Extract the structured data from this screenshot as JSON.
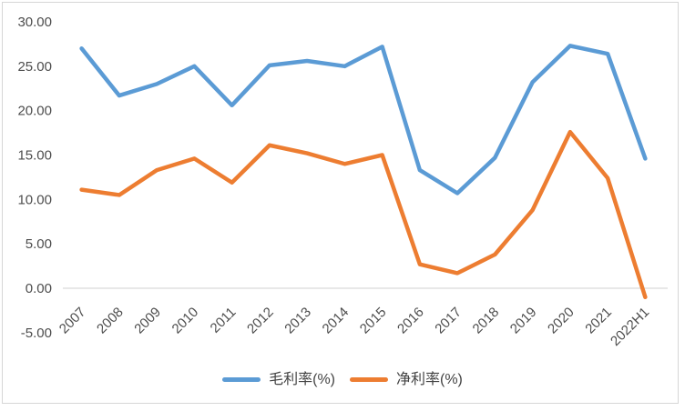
{
  "chart_data": {
    "type": "line",
    "title": "",
    "xlabel": "",
    "ylabel": "",
    "categories": [
      "2007",
      "2008",
      "2009",
      "2010",
      "2011",
      "2012",
      "2013",
      "2014",
      "2015",
      "2016",
      "2017",
      "2018",
      "2019",
      "2020",
      "2021",
      "2022H1"
    ],
    "series": [
      {
        "name": "毛利率(%)",
        "color": "#5B9BD5",
        "values": [
          27.0,
          21.7,
          23.0,
          25.0,
          20.6,
          25.1,
          25.6,
          25.0,
          27.2,
          13.3,
          10.7,
          14.7,
          23.2,
          27.3,
          26.4,
          14.6
        ]
      },
      {
        "name": "净利率(%)",
        "color": "#ED7D31",
        "values": [
          11.1,
          10.5,
          13.3,
          14.6,
          11.9,
          16.1,
          15.2,
          14.0,
          15.0,
          2.7,
          1.7,
          3.8,
          8.8,
          17.6,
          12.4,
          -1.0
        ]
      }
    ],
    "y_ticks": [
      30,
      25,
      20,
      15,
      10,
      5,
      0,
      -5
    ],
    "y_tick_labels": [
      "30.00",
      "25.00",
      "20.00",
      "15.00",
      "10.00",
      "5.00",
      "0.00",
      "-5.00"
    ],
    "ylim": [
      -5,
      30
    ],
    "grid": "none",
    "zero_axis_line": true,
    "x_label_rotation": -45,
    "legend_position": "bottom"
  },
  "colors": {
    "axis_text": "#4d4d4d",
    "zero_line": "#d9d9d9",
    "frame_border": "#d6d6d6",
    "background": "#ffffff"
  }
}
